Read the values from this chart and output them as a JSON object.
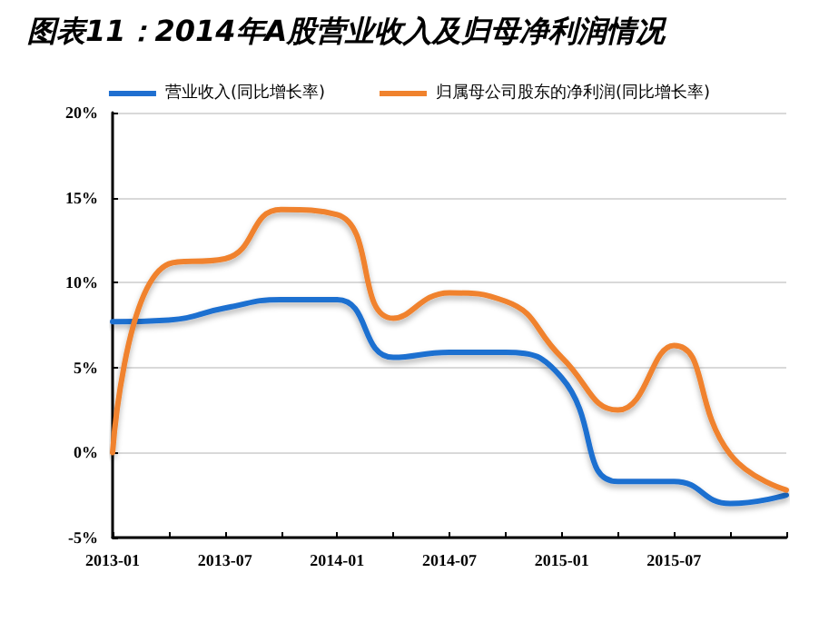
{
  "chart_data": {
    "type": "line",
    "title": "图表11：2014年A股营业收入及归母净利润情况",
    "categories": [
      "2013-01",
      null,
      "2013-07",
      null,
      "2014-01",
      null,
      "2014-07",
      null,
      "2015-01",
      null,
      "2015-07",
      null,
      null
    ],
    "series": [
      {
        "name": "营业收入(同比增长率)",
        "color": "#1f6fd0",
        "values": [
          7.7,
          7.8,
          8.5,
          9.0,
          9.0,
          5.6,
          5.9,
          5.9,
          4.4,
          -1.7,
          -1.7,
          -3.0,
          -2.5
        ]
      },
      {
        "name": "归属母公司股东的净利润(同比增长率)",
        "color": "#f0822d",
        "values": [
          0,
          11.1,
          11.4,
          14.3,
          14.0,
          7.9,
          9.4,
          8.9,
          5.6,
          2.5,
          6.3,
          -0.1,
          -2.2
        ]
      }
    ],
    "ylim": [
      -5,
      20
    ],
    "yticks": [
      {
        "value": -5,
        "label": "-5%"
      },
      {
        "value": 0,
        "label": "0%"
      },
      {
        "value": 5,
        "label": "5%"
      },
      {
        "value": 10,
        "label": "10%"
      },
      {
        "value": 15,
        "label": "15%"
      },
      {
        "value": 20,
        "label": "20%"
      }
    ],
    "grid": "y",
    "legend": "top",
    "marker": "none",
    "line_style": "solid"
  }
}
